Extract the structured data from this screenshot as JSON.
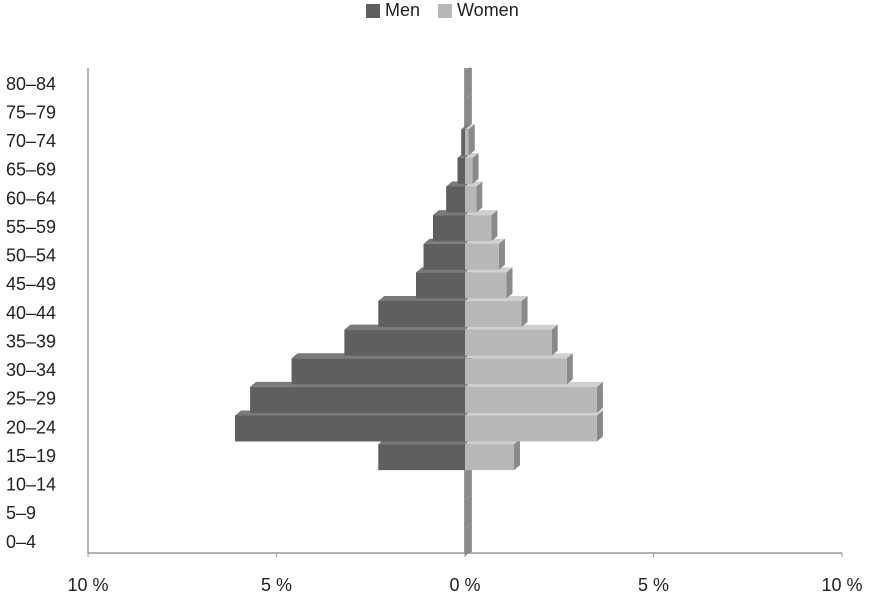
{
  "chart_data": {
    "type": "pyramid",
    "categories": [
      "0–4",
      "5–9",
      "10–14",
      "15–19",
      "20–24",
      "25–29",
      "30–34",
      "35–39",
      "40–44",
      "45–49",
      "50–54",
      "55–59",
      "60–64",
      "65–69",
      "70–74",
      "75–79",
      "80–84"
    ],
    "series": [
      {
        "name": "Men",
        "color": "#5f5f5f",
        "values": [
          0,
          0,
          0,
          -2.3,
          -6.1,
          -5.7,
          -4.6,
          -3.2,
          -2.3,
          -1.3,
          -1.1,
          -0.85,
          -0.5,
          -0.2,
          -0.1,
          0,
          0
        ]
      },
      {
        "name": "Women",
        "color": "#b8b8b8",
        "values": [
          0,
          0,
          0,
          1.3,
          3.5,
          3.5,
          2.7,
          2.3,
          1.5,
          1.1,
          0.9,
          0.7,
          0.3,
          0.2,
          0.1,
          0,
          0
        ]
      }
    ],
    "xlim": [
      -10,
      10
    ],
    "xticks": [
      {
        "value": -10,
        "label": "10 %"
      },
      {
        "value": -5,
        "label": "5 %"
      },
      {
        "value": 0,
        "label": "0 %"
      },
      {
        "value": 5,
        "label": "5 %"
      },
      {
        "value": 10,
        "label": "10 %"
      }
    ]
  }
}
